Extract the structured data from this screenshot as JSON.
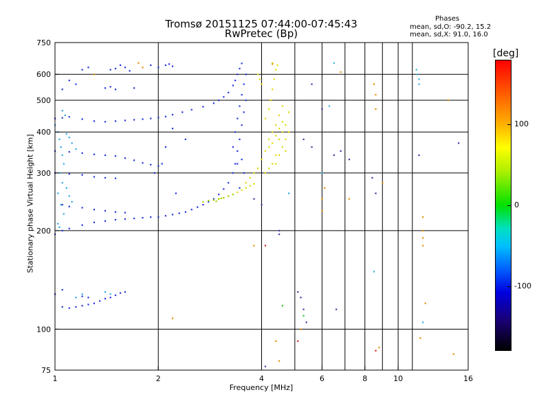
{
  "chart_data": {
    "type": "scatter",
    "title": "Tromsø 20151125 07:44:00-07:45:43",
    "subtitle": "RwPretec (Bp)",
    "xlabel": "Frequency [MHz]",
    "ylabel": "Stationary phase Virtual Height [km]",
    "xscale": "log",
    "yscale": "log",
    "xlim": [
      1,
      16
    ],
    "ylim": [
      75,
      750
    ],
    "xticks": [
      1,
      2,
      4,
      6,
      8,
      10,
      16
    ],
    "yticks": [
      75,
      100,
      200,
      300,
      400,
      500,
      600,
      750
    ],
    "ytick_labels": [
      "75",
      "100",
      "200",
      "300",
      "400",
      "500",
      "600",
      "750"
    ],
    "grid_x": [
      2,
      4,
      6,
      8,
      10
    ],
    "grid_y": [
      100,
      200,
      300,
      400,
      500,
      600
    ],
    "extra_vlines": [
      5,
      7,
      9,
      11
    ],
    "phase_stats": {
      "heading": "Phases",
      "line_o": "mean, sd,O: -90.2, 15.2",
      "line_x": "mean, sd,X:  91.0, 16.0"
    },
    "colorbar": {
      "unit": "[deg]",
      "range": [
        -180,
        180
      ],
      "ticks": [
        "100",
        "0",
        "-100"
      ],
      "tick_values": [
        100,
        0,
        -100
      ],
      "colormap": "rainbow (black-purple-blue-cyan-green-yellow-orange-red)"
    },
    "series": [
      {
        "color": "#2233dd",
        "points": [
          [
            1.0,
            440
          ],
          [
            1.05,
            442
          ],
          [
            1.1,
            445
          ],
          [
            1.2,
            438
          ],
          [
            1.3,
            432
          ],
          [
            1.4,
            430
          ],
          [
            1.5,
            432
          ],
          [
            1.6,
            434
          ],
          [
            1.7,
            436
          ],
          [
            1.8,
            438
          ],
          [
            1.9,
            440
          ],
          [
            2.0,
            443
          ],
          [
            2.1,
            446
          ],
          [
            2.2,
            452
          ],
          [
            2.35,
            460
          ],
          [
            2.5,
            468
          ],
          [
            2.7,
            478
          ],
          [
            2.9,
            490
          ],
          [
            3.0,
            500
          ],
          [
            3.1,
            512
          ],
          [
            3.2,
            528
          ],
          [
            3.3,
            555
          ],
          [
            3.35,
            575
          ],
          [
            3.4,
            600
          ],
          [
            3.45,
            625
          ],
          [
            3.5,
            648
          ],
          [
            1.0,
            350
          ],
          [
            1.1,
            348
          ],
          [
            1.2,
            345
          ],
          [
            1.3,
            342
          ],
          [
            1.4,
            340
          ],
          [
            1.5,
            338
          ],
          [
            1.6,
            333
          ],
          [
            1.7,
            328
          ],
          [
            1.8,
            322
          ],
          [
            1.9,
            318
          ],
          [
            2.0,
            315
          ],
          [
            1.0,
            300
          ],
          [
            1.1,
            298
          ],
          [
            1.2,
            296
          ],
          [
            1.3,
            292
          ],
          [
            1.4,
            290
          ],
          [
            1.5,
            289
          ],
          [
            1.05,
            240
          ],
          [
            1.1,
            237
          ],
          [
            1.2,
            235
          ],
          [
            1.3,
            232
          ],
          [
            1.4,
            230
          ],
          [
            1.5,
            228
          ],
          [
            1.6,
            227
          ],
          [
            1.0,
            195
          ],
          [
            1.05,
            200
          ],
          [
            1.1,
            203
          ],
          [
            1.2,
            208
          ],
          [
            1.3,
            212
          ],
          [
            1.4,
            214
          ],
          [
            1.5,
            216
          ],
          [
            1.6,
            217
          ],
          [
            1.7,
            218
          ],
          [
            1.8,
            219
          ],
          [
            1.9,
            220
          ],
          [
            2.0,
            220
          ],
          [
            2.1,
            222
          ],
          [
            2.2,
            224
          ],
          [
            2.3,
            226
          ],
          [
            2.4,
            228
          ],
          [
            2.5,
            232
          ],
          [
            2.6,
            236
          ],
          [
            2.7,
            240
          ],
          [
            2.8,
            245
          ],
          [
            2.9,
            250
          ],
          [
            3.0,
            258
          ],
          [
            3.1,
            268
          ],
          [
            3.2,
            280
          ],
          [
            3.3,
            300
          ],
          [
            3.35,
            320
          ],
          [
            3.4,
            350
          ],
          [
            3.45,
            380
          ],
          [
            3.5,
            420
          ],
          [
            3.55,
            460
          ],
          [
            3.6,
            500
          ],
          [
            3.3,
            360
          ],
          [
            3.35,
            400
          ],
          [
            3.4,
            440
          ],
          [
            3.45,
            480
          ],
          [
            3.5,
            520
          ],
          [
            3.55,
            560
          ],
          [
            3.6,
            600
          ],
          [
            3.4,
            320
          ],
          [
            3.5,
            330
          ],
          [
            3.55,
            300
          ],
          [
            3.45,
            270
          ],
          [
            1.45,
            620
          ],
          [
            1.5,
            625
          ],
          [
            1.55,
            640
          ],
          [
            1.6,
            630
          ],
          [
            1.65,
            615
          ],
          [
            1.9,
            640
          ],
          [
            2.0,
            630
          ],
          [
            2.1,
            640
          ],
          [
            2.15,
            645
          ],
          [
            2.2,
            635
          ],
          [
            1.2,
            620
          ],
          [
            1.25,
            630
          ],
          [
            1.1,
            575
          ],
          [
            1.15,
            560
          ],
          [
            1.4,
            545
          ],
          [
            1.45,
            550
          ],
          [
            1.5,
            540
          ],
          [
            1.7,
            545
          ],
          [
            1.05,
            540
          ],
          [
            1.05,
            117
          ],
          [
            1.1,
            116
          ],
          [
            1.15,
            117
          ],
          [
            1.2,
            118
          ],
          [
            1.25,
            119
          ],
          [
            1.3,
            120
          ],
          [
            1.35,
            122
          ],
          [
            1.4,
            124
          ],
          [
            1.45,
            125
          ],
          [
            1.5,
            127
          ],
          [
            1.55,
            129
          ],
          [
            1.6,
            130
          ],
          [
            1.0,
            128
          ],
          [
            1.05,
            132
          ],
          [
            1.2,
            126
          ],
          [
            1.25,
            125
          ],
          [
            2.4,
            380
          ],
          [
            2.2,
            410
          ],
          [
            2.1,
            360
          ],
          [
            2.05,
            320
          ],
          [
            1.95,
            300
          ],
          [
            2.25,
            260
          ]
        ]
      },
      {
        "color": "#2aa8e0",
        "points": [
          [
            1.0,
            420
          ],
          [
            1.02,
            400
          ],
          [
            1.03,
            380
          ],
          [
            1.04,
            360
          ],
          [
            1.05,
            340
          ],
          [
            1.06,
            320
          ],
          [
            1.03,
            300
          ],
          [
            1.05,
            280
          ],
          [
            1.02,
            260
          ],
          [
            1.04,
            240
          ],
          [
            1.06,
            225
          ],
          [
            1.02,
            210
          ],
          [
            1.03,
            205
          ],
          [
            1.08,
            395
          ],
          [
            1.1,
            385
          ],
          [
            1.12,
            370
          ],
          [
            1.15,
            355
          ],
          [
            1.08,
            270
          ],
          [
            1.1,
            255
          ],
          [
            1.12,
            245
          ],
          [
            1.05,
            465
          ],
          [
            1.07,
            450
          ],
          [
            1.15,
            125
          ],
          [
            1.2,
            128
          ],
          [
            1.4,
            130
          ],
          [
            1.45,
            128
          ]
        ]
      },
      {
        "color": "#e0d800",
        "points": [
          [
            3.6,
            280
          ],
          [
            3.7,
            290
          ],
          [
            3.8,
            300
          ],
          [
            3.9,
            310
          ],
          [
            4.0,
            330
          ],
          [
            4.1,
            350
          ],
          [
            4.2,
            380
          ],
          [
            4.3,
            400
          ],
          [
            4.4,
            420
          ],
          [
            4.5,
            450
          ],
          [
            4.6,
            480
          ],
          [
            3.0,
            250
          ],
          [
            3.1,
            252
          ],
          [
            3.2,
            255
          ],
          [
            3.3,
            258
          ],
          [
            3.4,
            262
          ],
          [
            3.5,
            266
          ],
          [
            3.6,
            270
          ],
          [
            3.7,
            274
          ],
          [
            3.8,
            278
          ],
          [
            4.1,
            300
          ],
          [
            4.2,
            310
          ],
          [
            4.3,
            320
          ],
          [
            4.4,
            340
          ],
          [
            4.2,
            360
          ],
          [
            4.3,
            370
          ],
          [
            4.4,
            390
          ],
          [
            4.5,
            410
          ],
          [
            4.6,
            430
          ],
          [
            4.5,
            380
          ],
          [
            4.6,
            400
          ],
          [
            4.7,
            420
          ],
          [
            4.7,
            380
          ],
          [
            4.7,
            350
          ],
          [
            4.1,
            440
          ],
          [
            4.2,
            470
          ],
          [
            4.25,
            500
          ],
          [
            4.3,
            540
          ],
          [
            4.35,
            580
          ],
          [
            4.4,
            620
          ],
          [
            4.45,
            640
          ],
          [
            4.3,
            650
          ],
          [
            3.9,
            600
          ],
          [
            3.95,
            580
          ],
          [
            4.0,
            560
          ],
          [
            4.4,
            320
          ],
          [
            4.5,
            340
          ],
          [
            4.6,
            360
          ],
          [
            4.8,
            460
          ],
          [
            4.8,
            400
          ]
        ]
      },
      {
        "color": "#a0d000",
        "points": [
          [
            2.7,
            245
          ],
          [
            2.8,
            247
          ],
          [
            2.9,
            248
          ],
          [
            3.0,
            250
          ],
          [
            3.1,
            252
          ],
          [
            3.2,
            255
          ],
          [
            3.3,
            258
          ],
          [
            2.95,
            246
          ],
          [
            3.05,
            251
          ]
        ]
      },
      {
        "color": "#e09000",
        "points": [
          [
            1.3,
            600
          ],
          [
            1.75,
            650
          ],
          [
            1.8,
            630
          ],
          [
            4.3,
            645
          ],
          [
            6.0,
            250
          ],
          [
            6.1,
            270
          ],
          [
            6.0,
            230
          ],
          [
            6.8,
            610
          ],
          [
            7.2,
            250
          ],
          [
            8.5,
            560
          ],
          [
            8.6,
            520
          ],
          [
            8.6,
            470
          ],
          [
            9.0,
            280
          ],
          [
            11.8,
            220
          ],
          [
            11.8,
            200
          ],
          [
            11.8,
            190
          ],
          [
            11.8,
            180
          ],
          [
            12.0,
            120
          ],
          [
            11.6,
            94
          ],
          [
            14.0,
            500
          ],
          [
            14.5,
            84
          ],
          [
            8.8,
            88
          ],
          [
            5.2,
            100
          ],
          [
            4.4,
            92
          ],
          [
            4.5,
            80
          ],
          [
            3.8,
            180
          ],
          [
            2.2,
            108
          ]
        ]
      },
      {
        "color": "#3a3aa0",
        "points": [
          [
            5.6,
            560
          ],
          [
            5.3,
            380
          ],
          [
            5.6,
            360
          ],
          [
            6.0,
            470
          ],
          [
            6.5,
            340
          ],
          [
            6.8,
            350
          ],
          [
            7.2,
            330
          ],
          [
            8.4,
            290
          ],
          [
            8.6,
            260
          ],
          [
            11.5,
            340
          ],
          [
            15.0,
            370
          ],
          [
            5.1,
            130
          ],
          [
            5.2,
            125
          ],
          [
            4.5,
            200
          ],
          [
            4.5,
            195
          ],
          [
            6.6,
            115
          ],
          [
            5.3,
            115
          ],
          [
            4.1,
            77
          ],
          [
            5.4,
            105
          ],
          [
            3.8,
            250
          ],
          [
            4.0,
            240
          ]
        ]
      },
      {
        "color": "#30b0e0",
        "points": [
          [
            6.5,
            650
          ],
          [
            11.3,
            620
          ],
          [
            11.4,
            600
          ],
          [
            11.5,
            580
          ],
          [
            11.5,
            560
          ],
          [
            6.3,
            480
          ],
          [
            6.0,
            300
          ],
          [
            8.5,
            150
          ],
          [
            11.8,
            105
          ],
          [
            4.8,
            260
          ]
        ]
      },
      {
        "color": "#30c030",
        "points": [
          [
            4.6,
            118
          ],
          [
            5.3,
            110
          ]
        ]
      },
      {
        "color": "#d02020",
        "points": [
          [
            4.1,
            180
          ],
          [
            5.1,
            92
          ],
          [
            8.6,
            86
          ]
        ]
      }
    ]
  }
}
